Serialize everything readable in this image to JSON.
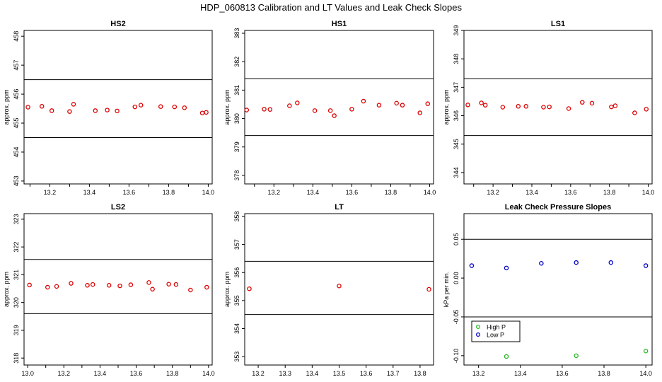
{
  "suptitle": "HDP_060813  Calibration and LT Values and Leak Check Slopes",
  "colors": {
    "points": "#dd0000",
    "high_p": "#22bb22",
    "low_p": "#0000cc",
    "lines": "#000000"
  },
  "chart_data": [
    {
      "type": "scatter",
      "title": "HS2",
      "ylabel": "approx. ppm",
      "xlim": [
        13.07,
        14.02
      ],
      "ylim": [
        452.9,
        458.2
      ],
      "xticks": [
        "",
        "13.2",
        "",
        "13.4",
        "",
        "13.6",
        "",
        "13.8",
        "",
        "14.0"
      ],
      "xtick_values": [
        13.1,
        13.2,
        13.3,
        13.4,
        13.5,
        13.6,
        13.7,
        13.8,
        13.9,
        14.0
      ],
      "yticks": [
        "453",
        "454",
        "455",
        "456",
        "457",
        "458"
      ],
      "ytick_values": [
        453,
        454,
        455,
        456,
        457,
        458
      ],
      "hlines": [
        456.5,
        454.5
      ],
      "series": [
        {
          "x": [
            13.09,
            13.16,
            13.21,
            13.3,
            13.32,
            13.43,
            13.49,
            13.54,
            13.63,
            13.66,
            13.76,
            13.83,
            13.88,
            13.97,
            13.99
          ],
          "y": [
            455.55,
            455.58,
            455.43,
            455.4,
            455.65,
            455.43,
            455.45,
            455.42,
            455.56,
            455.62,
            455.57,
            455.56,
            455.53,
            455.35,
            455.37
          ]
        }
      ]
    },
    {
      "type": "scatter",
      "title": "HS1",
      "ylabel": "approx. ppm",
      "xlim": [
        13.05,
        14.02
      ],
      "ylim": [
        377.7,
        383.1
      ],
      "xticks": [
        "",
        "13.2",
        "",
        "13.4",
        "",
        "13.6",
        "",
        "13.8",
        "",
        "14.0"
      ],
      "xtick_values": [
        13.1,
        13.2,
        13.3,
        13.4,
        13.5,
        13.6,
        13.7,
        13.8,
        13.9,
        14.0
      ],
      "yticks": [
        "378",
        "379",
        "380",
        "381",
        "382",
        "383"
      ],
      "ytick_values": [
        378,
        379,
        380,
        381,
        382,
        383
      ],
      "hlines": [
        381.4,
        379.4
      ],
      "series": [
        {
          "x": [
            13.06,
            13.15,
            13.18,
            13.28,
            13.32,
            13.41,
            13.49,
            13.51,
            13.6,
            13.66,
            13.74,
            13.83,
            13.86,
            13.95,
            13.99
          ],
          "y": [
            380.3,
            380.33,
            380.32,
            380.45,
            380.55,
            380.28,
            380.28,
            380.1,
            380.33,
            380.61,
            380.47,
            380.54,
            380.47,
            380.2,
            380.52
          ]
        }
      ]
    },
    {
      "type": "scatter",
      "title": "LS1",
      "ylabel": "approx. ppm",
      "xlim": [
        13.05,
        14.02
      ],
      "ylim": [
        343.6,
        349.0
      ],
      "xticks": [
        "",
        "13.2",
        "",
        "13.4",
        "",
        "13.6",
        "",
        "13.8",
        "",
        "14.0"
      ],
      "xtick_values": [
        13.1,
        13.2,
        13.3,
        13.4,
        13.5,
        13.6,
        13.7,
        13.8,
        13.9,
        14.0
      ],
      "yticks": [
        "344",
        "345",
        "346",
        "347",
        "348",
        "349"
      ],
      "ytick_values": [
        344,
        345,
        346,
        347,
        348,
        349
      ],
      "hlines": [
        347.3,
        345.3
      ],
      "series": [
        {
          "x": [
            13.07,
            13.14,
            13.16,
            13.25,
            13.33,
            13.37,
            13.46,
            13.49,
            13.59,
            13.66,
            13.71,
            13.81,
            13.83,
            13.93,
            13.99
          ],
          "y": [
            346.38,
            346.45,
            346.37,
            346.3,
            346.33,
            346.33,
            346.3,
            346.31,
            346.25,
            346.47,
            346.44,
            346.31,
            346.35,
            346.1,
            346.23
          ]
        }
      ]
    },
    {
      "type": "scatter",
      "title": "LS2",
      "ylabel": "approx. ppm",
      "xlim": [
        12.98,
        14.02
      ],
      "ylim": [
        317.75,
        323.2
      ],
      "xticks": [
        "13.0",
        "",
        "13.2",
        "",
        "13.4",
        "",
        "13.6",
        "",
        "13.8",
        "",
        "14.0"
      ],
      "xtick_values": [
        13.0,
        13.1,
        13.2,
        13.3,
        13.4,
        13.5,
        13.6,
        13.7,
        13.8,
        13.9,
        14.0
      ],
      "yticks": [
        "318",
        "319",
        "320",
        "321",
        "322",
        "323"
      ],
      "ytick_values": [
        318,
        319,
        320,
        321,
        322,
        323
      ],
      "hlines": [
        321.55,
        319.6
      ],
      "series": [
        {
          "x": [
            13.01,
            13.11,
            13.16,
            13.24,
            13.33,
            13.36,
            13.45,
            13.51,
            13.57,
            13.67,
            13.69,
            13.78,
            13.82,
            13.9,
            13.99
          ],
          "y": [
            320.63,
            320.55,
            320.58,
            320.69,
            320.62,
            320.65,
            320.62,
            320.6,
            320.64,
            320.72,
            320.48,
            320.66,
            320.65,
            320.45,
            320.55
          ]
        }
      ]
    },
    {
      "type": "scatter",
      "title": "LT",
      "ylabel": "approx. ppm",
      "xlim": [
        13.15,
        13.85
      ],
      "ylim": [
        352.7,
        358.1
      ],
      "xticks": [
        "13.2",
        "13.3",
        "13.4",
        "13.5",
        "13.6",
        "13.7",
        "13.8"
      ],
      "xtick_values": [
        13.2,
        13.3,
        13.4,
        13.5,
        13.6,
        13.7,
        13.8
      ],
      "yticks": [
        "353",
        "354",
        "355",
        "356",
        "357",
        "358"
      ],
      "ytick_values": [
        353,
        354,
        355,
        356,
        357,
        358
      ],
      "hlines": [
        356.4,
        354.5
      ],
      "series": [
        {
          "x": [
            13.167,
            13.5,
            13.833
          ],
          "y": [
            355.42,
            355.52,
            355.4
          ]
        }
      ]
    },
    {
      "type": "scatter",
      "title": "Leak Check Pressure Slopes",
      "ylabel": "kPa per min.",
      "xlim": [
        13.13,
        14.03
      ],
      "ylim": [
        -0.112,
        0.083
      ],
      "xticks": [
        "13.2",
        "13.4",
        "13.6",
        "13.8",
        "14.0"
      ],
      "xtick_values": [
        13.2,
        13.4,
        13.6,
        13.8,
        14.0
      ],
      "yticks": [
        "-0.10",
        "-0.05",
        "0.00",
        "0.05"
      ],
      "ytick_values": [
        -0.1,
        -0.05,
        0.0,
        0.05
      ],
      "hlines": [
        0.05,
        -0.05
      ],
      "legend": {
        "position": "bottom-left",
        "entries": [
          "High P",
          "Low P"
        ]
      },
      "series": [
        {
          "name": "High P",
          "color": "#22bb22",
          "x": [
            13.333,
            13.667,
            14.0
          ],
          "y": [
            -0.101,
            -0.1,
            -0.094
          ]
        },
        {
          "name": "Low P",
          "color": "#0000cc",
          "x": [
            13.167,
            13.333,
            13.5,
            13.667,
            13.833,
            14.0
          ],
          "y": [
            0.016,
            0.013,
            0.019,
            0.02,
            0.02,
            0.016
          ]
        }
      ]
    }
  ]
}
